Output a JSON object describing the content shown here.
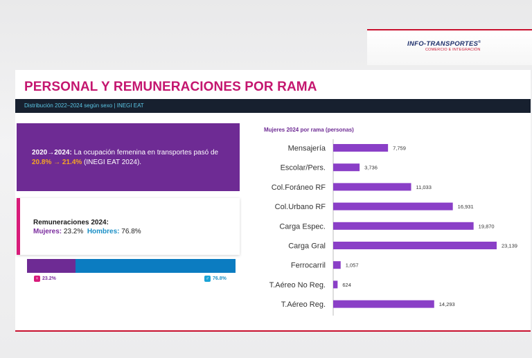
{
  "logo": {
    "name": "INFO-TRANSPORTES",
    "reg": "®",
    "tagline": "COMERCIO E INTEGRACIÓN"
  },
  "slide": {
    "title": "PERSONAL Y REMUNERACIONES POR RAMA",
    "subtitle": "Distribución 2022–2024 según sexo  |  INEGI EAT"
  },
  "highlight_card": {
    "lead": "2020→2024:",
    "text_before": " La ocupación femenina en transportes pasó de ",
    "from": "20.8%",
    "arrow": " → ",
    "to": "21.4%",
    "text_after": " (INEGI EAT 2024)."
  },
  "remuneration_card": {
    "heading": "Remuneraciones 2024:",
    "women_label": "Mujeres:",
    "women_value": "23.2%",
    "men_label": "Hombres:",
    "men_value": "76.8%"
  },
  "split_bar": {
    "women_share": 0.232,
    "men_share": 0.768,
    "women_label": "23.2%",
    "men_label": "76.8%",
    "women_icon": "female-icon",
    "men_icon": "male-icon",
    "women_color": "#6e2b94",
    "men_color": "#0b7cc1"
  },
  "chart_data": {
    "type": "bar",
    "orientation": "horizontal",
    "title": "Mujeres 2024 por rama (personas)",
    "categories": [
      "Mensajería",
      "Escolar/Pers.",
      "Col.Foráneo RF",
      "Col.Urbano RF",
      "Carga Espec.",
      "Carga Gral",
      "Ferrocarril",
      "T.Aéreo No Reg.",
      "T.Aéreo Reg."
    ],
    "values": [
      7759,
      3736,
      11033,
      16931,
      19870,
      23139,
      1057,
      624,
      14293
    ],
    "labels": [
      "7,759",
      "3,736",
      "11,033",
      "16,931",
      "19,870",
      "23,139",
      "1,057",
      "624",
      "14,293"
    ],
    "xlim": [
      0,
      23139
    ],
    "grid": false,
    "bar_color": "#8a3fc7"
  }
}
